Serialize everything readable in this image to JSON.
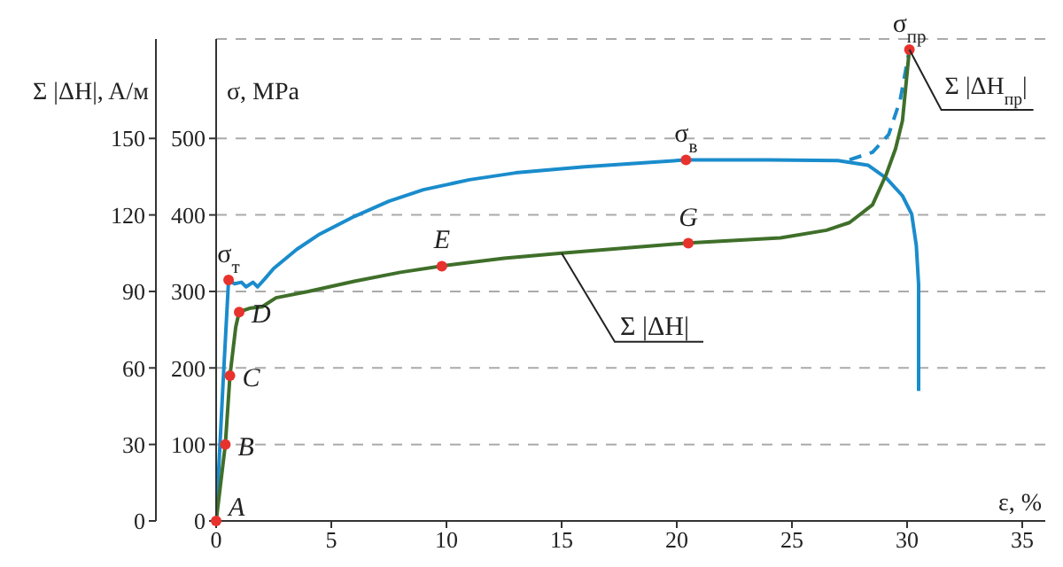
{
  "chart_data": {
    "type": "line",
    "xlabel": "ε, %",
    "ylabel": "σ, MPa",
    "y2label": "Σ |ΔH|, A/м",
    "xlim": [
      0,
      36
    ],
    "xticks": [
      0,
      5,
      10,
      15,
      20,
      25,
      30,
      35
    ],
    "ylim": [
      0,
      630
    ],
    "yticks": [
      0,
      100,
      200,
      300,
      400,
      500
    ],
    "y2lim": [
      0,
      189
    ],
    "y2ticks": [
      0,
      30,
      60,
      90,
      120,
      150
    ],
    "grid": "y",
    "legend": false,
    "marker": "none",
    "series": [
      {
        "axis": "y",
        "color": "#1a8ccc",
        "line_style": "solid",
        "x": [
          0,
          0.3,
          0.54,
          0.8,
          1.1,
          1.3,
          1.6,
          1.8,
          2.1,
          2.5,
          3.5,
          4.5,
          6,
          7.5,
          9,
          11,
          13,
          16,
          20.4,
          24,
          27,
          28.3,
          29.1,
          29.8,
          30.2,
          30.4,
          30.5,
          30.5
        ],
        "values": [
          0,
          180,
          315,
          310,
          312,
          306,
          312,
          306,
          316,
          330,
          355,
          375,
          398,
          418,
          433,
          446,
          455,
          463,
          472,
          472,
          471,
          465,
          448,
          425,
          401,
          360,
          309,
          170
        ]
      },
      {
        "axis": "y",
        "color": "#1a8ccc",
        "line_style": "dashed",
        "x": [
          27.5,
          28.5,
          29.2,
          29.7,
          30.1
        ],
        "values": [
          472,
          482,
          505,
          550,
          616
        ]
      },
      {
        "axis": "y2",
        "name": "Σ |ΔH|",
        "color": "#3f6f2a",
        "line_style": "solid",
        "x": [
          0,
          0.4,
          0.6,
          0.85,
          1.0,
          1.5,
          2.0,
          2.6,
          4,
          6,
          8,
          9.8,
          12.5,
          15,
          20.5,
          24.5,
          26.5,
          27.5,
          28.5,
          29.1,
          29.5,
          29.8,
          30.1
        ],
        "values": [
          0,
          30,
          57,
          76,
          82,
          83.5,
          84,
          87.5,
          90,
          94,
          97.5,
          100,
          103,
          105,
          109,
          111,
          114,
          117,
          124,
          136,
          146,
          157,
          185
        ]
      }
    ],
    "annotations": [
      {
        "text": "A",
        "x": 0,
        "y": 0
      },
      {
        "text": "B",
        "x": 0.4,
        "y": 100
      },
      {
        "text": "C",
        "x": 0.6,
        "y": 190
      },
      {
        "text": "D",
        "x": 1.0,
        "y": 273
      },
      {
        "text": "E",
        "x": 9.8,
        "y": 333
      },
      {
        "text": "G",
        "x": 20.5,
        "y": 363
      },
      {
        "text": "σ$_{т}$",
        "x": 0.54,
        "y": 315
      },
      {
        "text": "σ$_{в}$",
        "x": 20.4,
        "y": 472
      },
      {
        "text": "σ$_{пр}$",
        "x": 30.1,
        "y": 616
      },
      {
        "text": "Σ |ΔH$_{пр}$|",
        "x": 30.1,
        "y": 616
      }
    ]
  }
}
